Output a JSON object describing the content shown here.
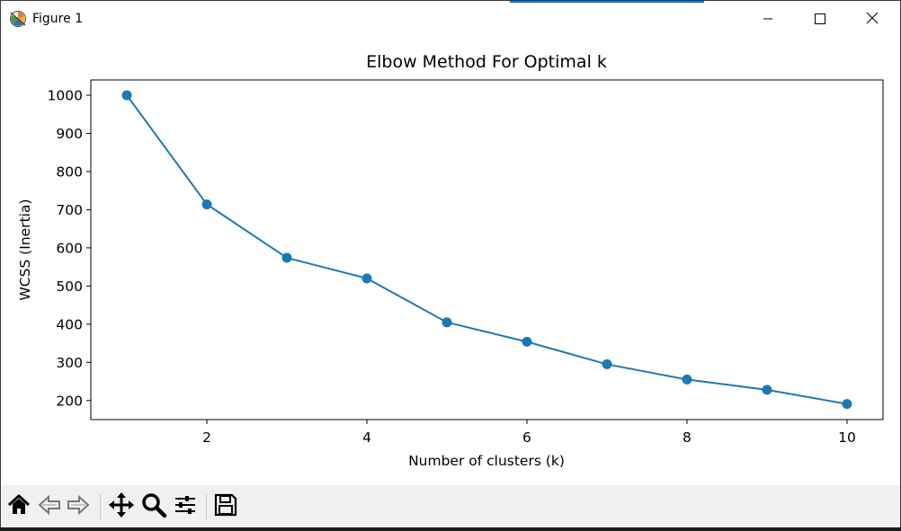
{
  "window": {
    "title": "Figure 1",
    "accent_color": "#0078d7"
  },
  "controls": {
    "minimize_icon": "minimize-icon",
    "maximize_icon": "maximize-icon",
    "close_icon": "close-icon"
  },
  "toolbar": {
    "buttons": [
      {
        "name": "home-icon"
      },
      {
        "name": "back-icon"
      },
      {
        "name": "forward-icon"
      },
      {
        "name": "pan-icon"
      },
      {
        "name": "zoom-icon"
      },
      {
        "name": "configure-subplots-icon"
      },
      {
        "name": "save-icon"
      }
    ]
  },
  "chart_data": {
    "type": "line",
    "title": "Elbow Method For Optimal k",
    "xlabel": "Number of clusters (k)",
    "ylabel": "WCSS (Inertia)",
    "x": [
      1,
      2,
      3,
      4,
      5,
      6,
      7,
      8,
      9,
      10
    ],
    "series": [
      {
        "values": [
          1000,
          714,
          574,
          520,
          405,
          354,
          295,
          255,
          228,
          191
        ],
        "color": "#1f77b4",
        "marker": "circle"
      }
    ],
    "xlim": [
      0.55,
      10.45
    ],
    "ylim": [
      150,
      1040
    ],
    "xticks": [
      2,
      4,
      6,
      8,
      10
    ],
    "yticks": [
      200,
      300,
      400,
      500,
      600,
      700,
      800,
      900,
      1000
    ],
    "grid": false,
    "legend": "none"
  }
}
